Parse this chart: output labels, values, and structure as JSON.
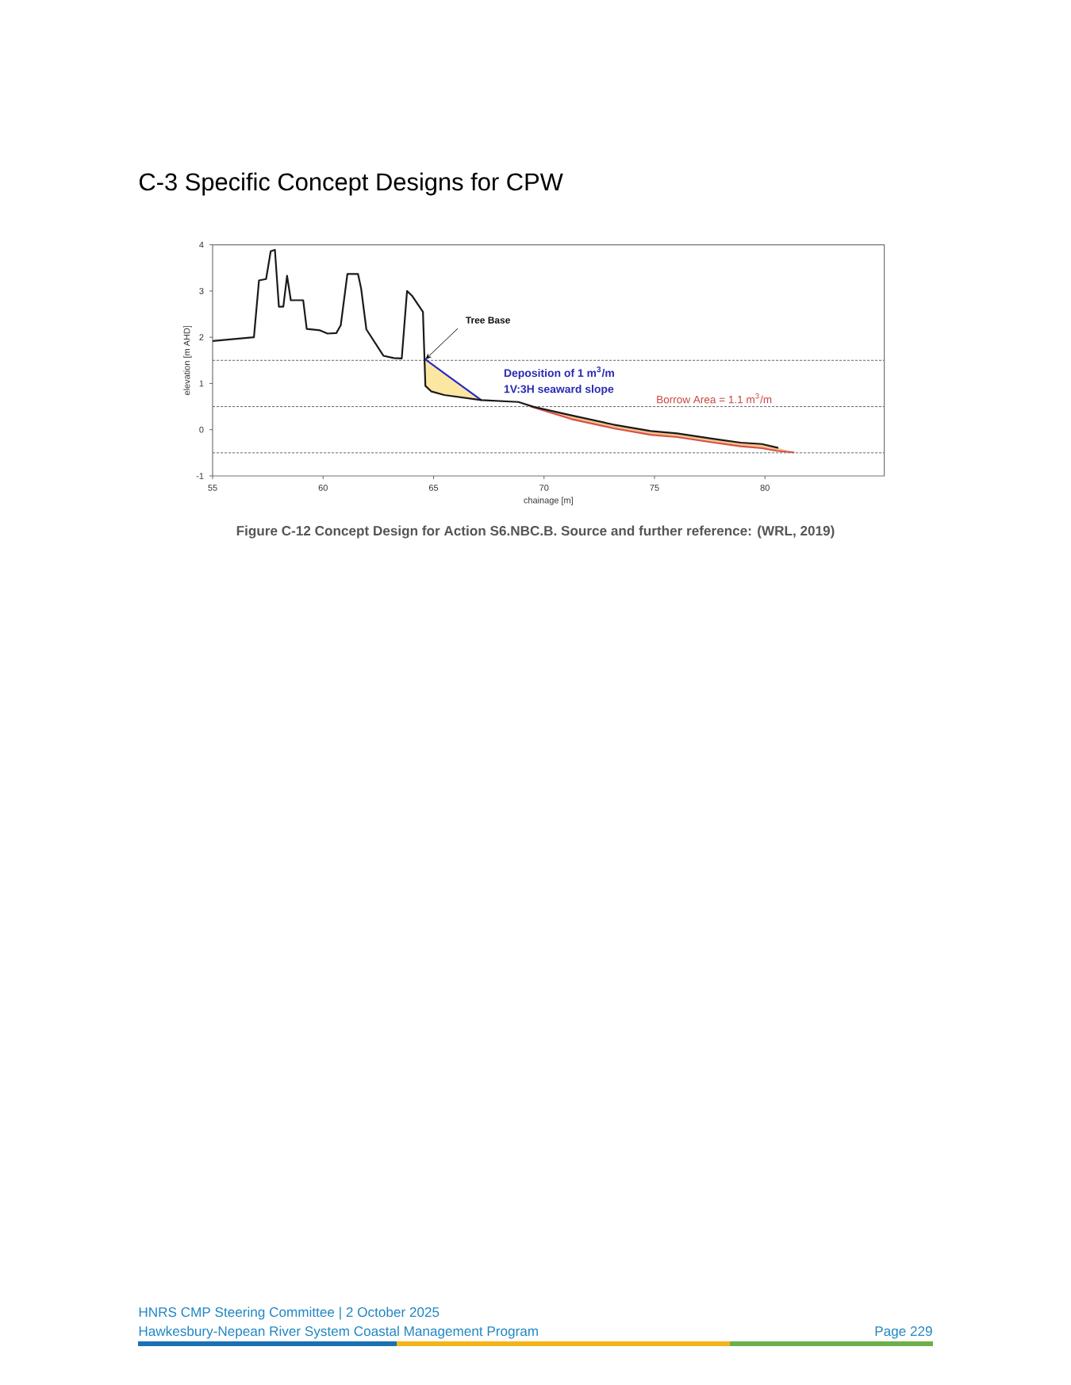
{
  "chart_data": {
    "type": "line",
    "title": "C-3 Specific Concept Designs for CPW",
    "xlabel": "chainage [m]",
    "ylabel": "elevation [m AHD]",
    "xlim": [
      55,
      85.4
    ],
    "ylim": [
      -1,
      4
    ],
    "xticks": [
      55,
      60,
      65,
      70,
      75,
      80
    ],
    "yticks": [
      -1,
      0,
      1,
      2,
      3,
      4
    ],
    "series": [
      {
        "color": "#d6504a",
        "x": [
          69.4,
          71.24,
          73.15,
          74.83,
          76.03,
          77.7,
          78.9,
          79.86,
          80.57,
          81.3
        ],
        "values": [
          0.5,
          0.23,
          0.03,
          -0.11,
          -0.16,
          -0.28,
          -0.36,
          -0.4,
          -0.46,
          -0.49
        ],
        "lower": [
          0.5,
          0.23,
          0.03,
          -0.11,
          -0.16,
          -0.28,
          -0.36,
          -0.4,
          -0.46,
          -0.49
        ],
        "upper": [
          0.52,
          0.31,
          0.11,
          -0.03,
          -0.08,
          -0.2,
          -0.28,
          -0.31,
          -0.39,
          -0.49
        ]
      },
      {
        "color": "#2828c8",
        "x": [
          64.63,
          64.89,
          65.49,
          67.16
        ],
        "values": [
          1.52,
          1.43,
          1.22,
          0.64
        ],
        "lower": [
          0.95,
          0.83,
          0.75,
          0.64
        ],
        "upper": [
          1.52,
          1.43,
          1.22,
          0.64
        ]
      },
      {
        "color": "#1a1a1a",
        "x": [
          55,
          56.87,
          57.1,
          57.42,
          57.63,
          57.82,
          58.0,
          58.2,
          58.37,
          58.54,
          59.1,
          59.26,
          59.86,
          60.2,
          60.6,
          60.8,
          61.1,
          61.58,
          61.72,
          61.96,
          62.73,
          63.2,
          63.56,
          63.8,
          64.04,
          64.52,
          64.63,
          64.89,
          65.49,
          67.16,
          68.84,
          69.56,
          71.24,
          73.15,
          74.83,
          76.03,
          77.7,
          78.9,
          79.86,
          80.57
        ],
        "values": [
          1.92,
          2.0,
          3.23,
          3.26,
          3.86,
          3.89,
          2.66,
          2.66,
          3.33,
          2.8,
          2.8,
          2.18,
          2.15,
          2.08,
          2.09,
          2.26,
          3.37,
          3.37,
          3.06,
          2.17,
          1.6,
          1.55,
          1.54,
          3.0,
          2.89,
          2.55,
          0.95,
          0.83,
          0.75,
          0.64,
          0.6,
          0.49,
          0.31,
          0.11,
          -0.03,
          -0.08,
          -0.2,
          -0.28,
          -0.31,
          -0.39
        ]
      }
    ],
    "ref_lines": [
      {
        "axis": "y",
        "value": 1.5,
        "color": "#666666",
        "line_style": "dashed"
      },
      {
        "axis": "y",
        "value": 0.5,
        "color": "#666666",
        "line_style": "dashed"
      },
      {
        "axis": "y",
        "value": -0.5,
        "color": "#666666",
        "line_style": "dashed"
      }
    ],
    "annotations": [
      {
        "text": "Tree Base",
        "x": 64.63,
        "y": 1.52
      },
      "Deposition of 1 m$^{3}$/m",
      "1V:3H seaward slope",
      "Borrow Area = 1.1 m$^{3}$/m",
      "Figure C-12 Concept Design for Action S6.NBC.B. Source and further reference: (WRL, 2019)",
      "HNRS CMP Steering Committee | 2 October 2025",
      "Hawkesbury-Nepean River System Coastal Management Program",
      "Page 229"
    ]
  }
}
